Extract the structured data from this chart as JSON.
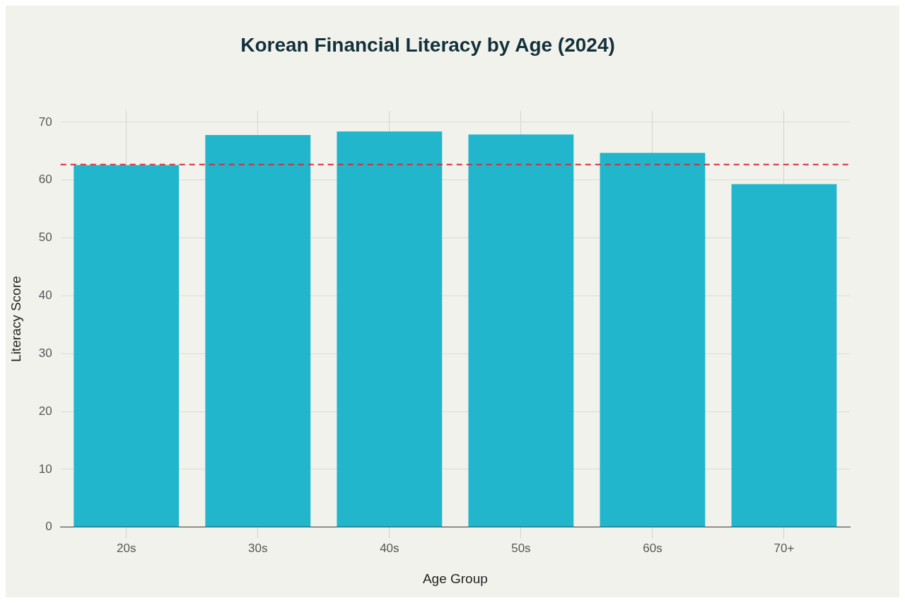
{
  "chart_data": {
    "type": "bar",
    "title": "Korean Financial Literacy by Age (2024)",
    "xlabel": "Age Group",
    "ylabel": "Literacy Score",
    "categories": [
      "20s",
      "30s",
      "40s",
      "50s",
      "60s",
      "70+"
    ],
    "values": [
      62.6,
      67.8,
      68.4,
      67.9,
      64.7,
      59.3
    ],
    "color": "#21b6cc",
    "ylim": [
      0,
      72
    ],
    "yticks": [
      0,
      10,
      20,
      30,
      40,
      50,
      60,
      70
    ],
    "grid": true,
    "ref_lines": [
      {
        "axis": "y",
        "value": 62.7,
        "color": "#d62b3a",
        "line_style": "dashed"
      }
    ]
  }
}
